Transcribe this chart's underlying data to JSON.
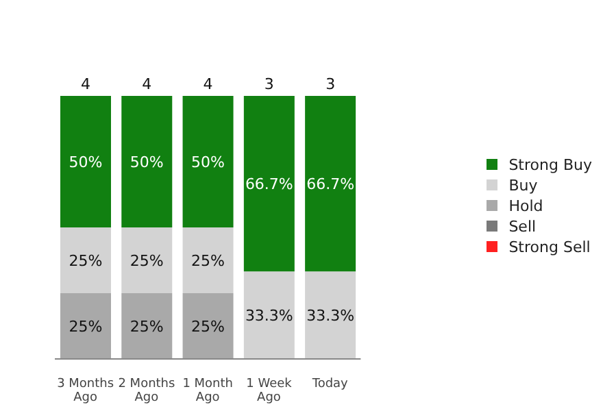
{
  "chart_data": {
    "type": "bar",
    "stacked": true,
    "categories": [
      "3 Months Ago",
      "2 Months Ago",
      "1 Month Ago",
      "1 Week Ago",
      "Today"
    ],
    "series": [
      {
        "name": "Strong Sell",
        "color": "#ff2020",
        "values": [
          null,
          null,
          null,
          null,
          null
        ],
        "value_labels": [
          null,
          null,
          null,
          null,
          null
        ]
      },
      {
        "name": "Sell",
        "color": "#7a7a7a",
        "values": [
          null,
          null,
          null,
          null,
          null
        ],
        "value_labels": [
          null,
          null,
          null,
          null,
          null
        ]
      },
      {
        "name": "Hold",
        "color": "#a9a9a9",
        "values": [
          25,
          25,
          25,
          null,
          null
        ],
        "value_labels": [
          "25%",
          "25%",
          "25%",
          null,
          null
        ]
      },
      {
        "name": "Buy",
        "color": "#d3d3d3",
        "values": [
          25,
          25,
          25,
          33.3,
          33.3
        ],
        "value_labels": [
          "25%",
          "25%",
          "25%",
          "33.3%",
          "33.3%"
        ]
      },
      {
        "name": "Strong Buy",
        "color": "#118011",
        "values": [
          50,
          50,
          50,
          66.7,
          66.7
        ],
        "value_labels": [
          "50%",
          "50%",
          "50%",
          "66.7%",
          "66.7%"
        ]
      }
    ],
    "annotations": [
      "4",
      "4",
      "4",
      "3",
      "3"
    ],
    "legend": "right"
  }
}
